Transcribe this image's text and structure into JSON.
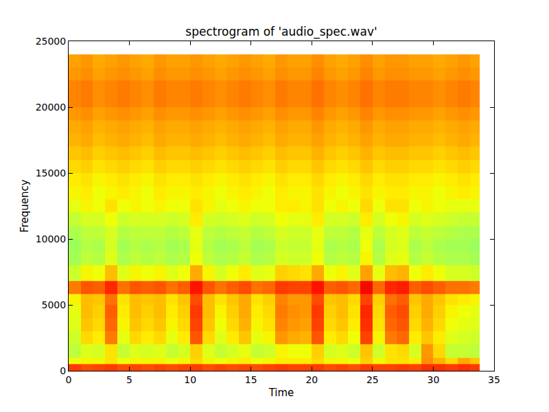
{
  "chart_data": {
    "type": "heatmap",
    "title": "spectrogram of 'audio_spec.wav'",
    "xlabel": "Time",
    "ylabel": "Frequency",
    "xlim": [
      0,
      35
    ],
    "ylim": [
      0,
      25000
    ],
    "xticks": [
      0,
      5,
      10,
      15,
      20,
      25,
      30,
      35
    ],
    "yticks": [
      0,
      5000,
      10000,
      15000,
      20000,
      25000
    ],
    "zlim": [
      0,
      10
    ],
    "x": [
      0,
      1,
      2,
      3,
      4,
      5,
      6,
      7,
      8,
      9,
      10,
      11,
      12,
      13,
      14,
      15,
      16,
      17,
      18,
      19,
      20,
      21,
      22,
      23,
      24,
      25,
      26,
      27,
      28,
      29,
      30,
      31,
      32,
      33,
      33.8
    ],
    "y": [
      0,
      500,
      1000,
      2000,
      3000,
      4000,
      5000,
      5800,
      6800,
      8000,
      9000,
      10000,
      11000,
      12000,
      13000,
      14000,
      15000,
      16000,
      17000,
      18000,
      19000,
      20000,
      21000,
      22000,
      23000,
      24000
    ],
    "z": [
      [
        8.5,
        8.3,
        8.4,
        8.5,
        8.3,
        8.4,
        8.3,
        8.4,
        8.3,
        8.4,
        8.5,
        8.3,
        8.4,
        8.3,
        8.4,
        8.3,
        8.4,
        8.5,
        8.4,
        8.4,
        8.5,
        8.3,
        8.4,
        8.3,
        8.5,
        8.4,
        8.4,
        8.5,
        8.4,
        8.6,
        8.6,
        8.5,
        8.6,
        8.5
      ],
      [
        6.4,
        6.5,
        6.5,
        6.7,
        6.4,
        6.5,
        6.5,
        6.5,
        6.4,
        6.5,
        6.8,
        6.5,
        6.4,
        6.5,
        6.6,
        6.4,
        6.5,
        6.6,
        6.6,
        6.6,
        6.8,
        6.5,
        6.5,
        6.4,
        6.9,
        6.5,
        6.7,
        6.7,
        6.6,
        7.6,
        7.2,
        6.8,
        7.3,
        7.0
      ],
      [
        5.8,
        6.2,
        6.1,
        6.7,
        5.9,
        6.2,
        6.1,
        6.2,
        5.9,
        6.1,
        6.9,
        6.2,
        5.9,
        6.1,
        6.3,
        5.9,
        6.0,
        6.5,
        6.4,
        6.4,
        6.9,
        6.1,
        6.2,
        6.0,
        7.0,
        6.0,
        6.7,
        6.8,
        6.1,
        7.5,
        6.8,
        5.9,
        5.9,
        5.8
      ],
      [
        6.0,
        6.8,
        6.6,
        7.8,
        6.3,
        6.8,
        6.6,
        6.8,
        6.3,
        6.6,
        8.2,
        6.8,
        6.2,
        6.6,
        7.0,
        6.3,
        6.5,
        7.5,
        7.3,
        7.2,
        8.2,
        6.6,
        6.8,
        6.4,
        8.4,
        6.5,
        7.8,
        8.0,
        6.6,
        7.0,
        6.6,
        6.2,
        6.1,
        6.0
      ],
      [
        6.2,
        7.0,
        6.8,
        8.0,
        6.5,
        7.0,
        6.8,
        7.0,
        6.5,
        6.8,
        8.4,
        7.0,
        6.4,
        6.8,
        7.2,
        6.5,
        6.7,
        7.7,
        7.5,
        7.4,
        8.4,
        6.8,
        7.0,
        6.6,
        8.6,
        6.7,
        8.0,
        8.2,
        6.8,
        7.2,
        6.8,
        6.4,
        6.3,
        6.2
      ],
      [
        6.3,
        7.1,
        6.9,
        8.1,
        6.6,
        7.1,
        6.9,
        7.1,
        6.6,
        6.9,
        8.5,
        7.1,
        6.5,
        6.9,
        7.3,
        6.6,
        6.8,
        7.8,
        7.6,
        7.5,
        8.5,
        6.9,
        7.1,
        6.7,
        8.7,
        6.8,
        8.1,
        8.3,
        6.9,
        7.3,
        6.9,
        6.5,
        6.4,
        6.3
      ],
      [
        6.5,
        7.1,
        7.0,
        7.9,
        6.7,
        7.1,
        7.0,
        7.1,
        6.7,
        7.0,
        8.3,
        7.1,
        6.7,
        7.0,
        7.3,
        6.7,
        6.9,
        7.7,
        7.5,
        7.5,
        8.3,
        7.0,
        7.1,
        6.8,
        8.4,
        6.9,
        7.9,
        8.1,
        7.0,
        7.3,
        7.0,
        6.7,
        6.6,
        6.5
      ],
      [
        7.8,
        8.2,
        8.1,
        8.7,
        7.9,
        8.2,
        8.1,
        8.2,
        7.9,
        8.1,
        8.9,
        8.2,
        7.9,
        8.1,
        8.3,
        7.9,
        8.0,
        8.5,
        8.4,
        8.4,
        8.9,
        8.1,
        8.2,
        8.0,
        9.0,
        8.0,
        8.7,
        8.8,
        8.1,
        8.3,
        8.1,
        7.9,
        7.9,
        7.8
      ],
      [
        6.0,
        6.5,
        6.4,
        7.1,
        6.2,
        6.5,
        6.4,
        6.5,
        6.2,
        6.4,
        7.3,
        6.5,
        6.1,
        6.4,
        6.6,
        6.2,
        6.3,
        6.9,
        6.8,
        6.7,
        7.3,
        6.4,
        6.5,
        6.2,
        7.4,
        6.3,
        7.1,
        7.2,
        6.4,
        6.6,
        6.4,
        6.1,
        6.1,
        6.0
      ],
      [
        5.5,
        5.8,
        5.7,
        6.2,
        5.6,
        5.8,
        5.7,
        5.8,
        5.6,
        5.7,
        6.4,
        5.8,
        5.6,
        5.7,
        5.9,
        5.6,
        5.7,
        6.1,
        6.0,
        6.0,
        6.4,
        5.7,
        5.8,
        5.7,
        6.5,
        5.7,
        6.2,
        6.3,
        5.7,
        5.9,
        5.7,
        5.6,
        5.6,
        5.5
      ],
      [
        5.4,
        5.7,
        5.6,
        6.1,
        5.5,
        5.7,
        5.6,
        5.7,
        5.5,
        5.6,
        6.3,
        5.7,
        5.5,
        5.6,
        5.8,
        5.5,
        5.6,
        6.0,
        5.9,
        5.9,
        6.3,
        5.6,
        5.7,
        5.6,
        6.4,
        5.6,
        6.1,
        6.2,
        5.6,
        5.8,
        5.6,
        5.5,
        5.5,
        5.4
      ],
      [
        5.6,
        5.8,
        5.8,
        6.1,
        5.7,
        5.8,
        5.8,
        5.8,
        5.7,
        5.8,
        6.3,
        5.8,
        5.7,
        5.8,
        5.9,
        5.7,
        5.8,
        6.1,
        6.0,
        6.0,
        6.3,
        5.8,
        5.8,
        5.7,
        6.3,
        5.8,
        6.1,
        6.2,
        5.8,
        5.9,
        5.8,
        5.7,
        5.6,
        5.6
      ],
      [
        5.9,
        6.1,
        6.1,
        6.4,
        6.0,
        6.1,
        6.1,
        6.1,
        6.0,
        6.1,
        6.6,
        6.1,
        6.0,
        6.1,
        6.2,
        6.0,
        6.1,
        6.4,
        6.3,
        6.3,
        6.6,
        6.1,
        6.1,
        6.0,
        6.6,
        6.1,
        6.4,
        6.5,
        6.1,
        6.2,
        6.1,
        6.0,
        5.9,
        5.9
      ],
      [
        6.3,
        6.5,
        6.4,
        6.7,
        6.4,
        6.5,
        6.4,
        6.5,
        6.4,
        6.4,
        6.7,
        6.5,
        6.3,
        6.4,
        6.5,
        6.4,
        6.4,
        6.6,
        6.6,
        6.5,
        6.7,
        6.4,
        6.5,
        6.4,
        6.8,
        6.4,
        6.7,
        6.7,
        6.4,
        6.5,
        6.4,
        6.3,
        6.3,
        6.3
      ],
      [
        6.5,
        6.6,
        6.4,
        6.5,
        6.6,
        6.5,
        6.4,
        6.6,
        6.5,
        6.5,
        6.6,
        6.5,
        6.4,
        6.5,
        6.6,
        6.5,
        6.4,
        6.6,
        6.5,
        6.5,
        6.7,
        6.5,
        6.4,
        6.5,
        6.7,
        6.5,
        6.6,
        6.6,
        6.5,
        6.5,
        6.4,
        6.5,
        6.6,
        6.5
      ],
      [
        6.6,
        6.7,
        6.5,
        6.6,
        6.7,
        6.6,
        6.5,
        6.7,
        6.6,
        6.6,
        6.7,
        6.6,
        6.5,
        6.6,
        6.7,
        6.6,
        6.5,
        6.7,
        6.6,
        6.6,
        6.8,
        6.6,
        6.5,
        6.6,
        6.8,
        6.6,
        6.7,
        6.7,
        6.6,
        6.6,
        6.5,
        6.6,
        6.7,
        6.6
      ],
      [
        6.8,
        6.9,
        6.7,
        6.8,
        6.9,
        6.8,
        6.7,
        6.9,
        6.8,
        6.8,
        6.9,
        6.8,
        6.7,
        6.8,
        6.9,
        6.8,
        6.7,
        6.9,
        6.8,
        6.8,
        7.0,
        6.8,
        6.7,
        6.8,
        7.0,
        6.8,
        6.9,
        6.9,
        6.8,
        6.8,
        6.7,
        6.8,
        6.9,
        6.8
      ],
      [
        7.0,
        7.1,
        6.9,
        7.0,
        7.1,
        7.0,
        6.9,
        7.1,
        7.0,
        7.0,
        7.1,
        7.0,
        6.9,
        7.0,
        7.1,
        7.0,
        6.9,
        7.1,
        7.0,
        7.0,
        7.2,
        7.0,
        6.9,
        7.0,
        7.2,
        7.0,
        7.1,
        7.1,
        7.0,
        7.0,
        6.9,
        7.0,
        7.1,
        7.0
      ],
      [
        7.2,
        7.3,
        7.1,
        7.2,
        7.3,
        7.2,
        7.1,
        7.3,
        7.2,
        7.2,
        7.3,
        7.2,
        7.1,
        7.2,
        7.3,
        7.2,
        7.1,
        7.3,
        7.2,
        7.2,
        7.4,
        7.2,
        7.1,
        7.2,
        7.4,
        7.2,
        7.3,
        7.3,
        7.2,
        7.2,
        7.1,
        7.2,
        7.3,
        7.2
      ],
      [
        7.3,
        7.4,
        7.2,
        7.3,
        7.4,
        7.3,
        7.2,
        7.4,
        7.3,
        7.3,
        7.4,
        7.3,
        7.2,
        7.3,
        7.4,
        7.3,
        7.2,
        7.4,
        7.3,
        7.3,
        7.5,
        7.3,
        7.2,
        7.3,
        7.5,
        7.3,
        7.4,
        7.4,
        7.3,
        7.3,
        7.2,
        7.3,
        7.4,
        7.3
      ],
      [
        7.5,
        7.6,
        7.4,
        7.5,
        7.6,
        7.5,
        7.4,
        7.6,
        7.5,
        7.5,
        7.6,
        7.5,
        7.4,
        7.5,
        7.6,
        7.5,
        7.4,
        7.6,
        7.5,
        7.5,
        7.7,
        7.5,
        7.4,
        7.5,
        7.7,
        7.5,
        7.6,
        7.6,
        7.5,
        7.5,
        7.4,
        7.5,
        7.6,
        7.5
      ],
      [
        7.7,
        7.8,
        7.6,
        7.7,
        7.8,
        7.7,
        7.6,
        7.8,
        7.7,
        7.7,
        7.8,
        7.7,
        7.6,
        7.7,
        7.8,
        7.7,
        7.6,
        7.8,
        7.7,
        7.7,
        7.9,
        7.7,
        7.6,
        7.7,
        7.9,
        7.7,
        7.8,
        7.8,
        7.7,
        7.7,
        7.6,
        7.7,
        7.8,
        7.7
      ],
      [
        7.7,
        7.8,
        7.6,
        7.7,
        7.8,
        7.7,
        7.6,
        7.8,
        7.7,
        7.7,
        7.8,
        7.7,
        7.6,
        7.7,
        7.8,
        7.7,
        7.6,
        7.8,
        7.7,
        7.7,
        7.9,
        7.7,
        7.6,
        7.7,
        7.9,
        7.7,
        7.8,
        7.8,
        7.7,
        7.7,
        7.6,
        7.7,
        7.8,
        7.7
      ],
      [
        7.5,
        7.6,
        7.4,
        7.5,
        7.6,
        7.5,
        7.4,
        7.6,
        7.5,
        7.5,
        7.6,
        7.5,
        7.4,
        7.5,
        7.6,
        7.5,
        7.4,
        7.6,
        7.5,
        7.5,
        7.7,
        7.5,
        7.4,
        7.5,
        7.7,
        7.5,
        7.6,
        7.6,
        7.5,
        7.5,
        7.4,
        7.5,
        7.6,
        7.5
      ],
      [
        7.4,
        7.5,
        7.3,
        7.4,
        7.5,
        7.4,
        7.3,
        7.5,
        7.4,
        7.4,
        7.5,
        7.4,
        7.3,
        7.4,
        7.5,
        7.4,
        7.3,
        7.5,
        7.4,
        7.4,
        7.6,
        7.4,
        7.3,
        7.4,
        7.6,
        7.4,
        7.5,
        7.5,
        7.4,
        7.4,
        7.3,
        7.4,
        7.5,
        7.4
      ]
    ]
  }
}
